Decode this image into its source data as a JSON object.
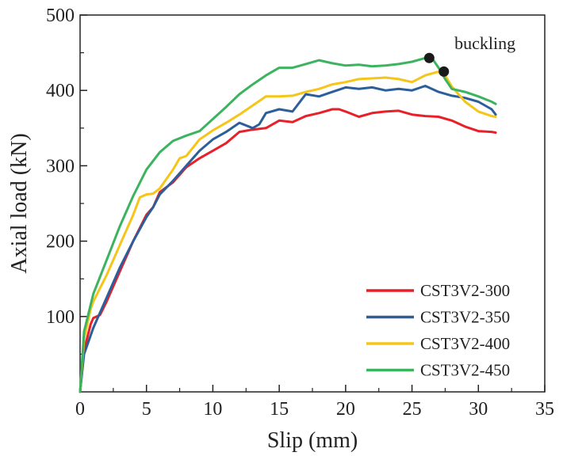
{
  "chart_data": {
    "type": "line",
    "xlabel": "Slip (mm)",
    "ylabel": "Axial load (kN)",
    "xlim": [
      0,
      35
    ],
    "ylim": [
      0,
      500
    ],
    "xticks": [
      0,
      5,
      10,
      15,
      20,
      25,
      30,
      35
    ],
    "yticks": [
      100,
      200,
      300,
      400,
      500
    ],
    "xtick_labels": [
      "0",
      "5",
      "10",
      "15",
      "20",
      "25",
      "30",
      "35"
    ],
    "ytick_labels": [
      "100",
      "200",
      "300",
      "400",
      "500"
    ],
    "legend_position": "bottom-right",
    "series": [
      {
        "name": "CST3V2-300",
        "color": "#e8202a",
        "points": [
          [
            0,
            0
          ],
          [
            0.3,
            55
          ],
          [
            0.8,
            90
          ],
          [
            1,
            98
          ],
          [
            1.5,
            102
          ],
          [
            2,
            120
          ],
          [
            3,
            160
          ],
          [
            4,
            200
          ],
          [
            5,
            235
          ],
          [
            5.5,
            245
          ],
          [
            6,
            265
          ],
          [
            7,
            278
          ],
          [
            8,
            298
          ],
          [
            9,
            310
          ],
          [
            10,
            320
          ],
          [
            11,
            330
          ],
          [
            12,
            345
          ],
          [
            13,
            348
          ],
          [
            14,
            350
          ],
          [
            15,
            360
          ],
          [
            16,
            358
          ],
          [
            17,
            366
          ],
          [
            18,
            370
          ],
          [
            19,
            375
          ],
          [
            19.5,
            375
          ],
          [
            20,
            372
          ],
          [
            21,
            365
          ],
          [
            22,
            370
          ],
          [
            23,
            372
          ],
          [
            24,
            373
          ],
          [
            25,
            368
          ],
          [
            26,
            366
          ],
          [
            27,
            365
          ],
          [
            28,
            360
          ],
          [
            29,
            352
          ],
          [
            30,
            346
          ],
          [
            31,
            345
          ],
          [
            31.3,
            344
          ]
        ]
      },
      {
        "name": "CST3V2-350",
        "color": "#2c5f9a",
        "points": [
          [
            0,
            0
          ],
          [
            0.3,
            50
          ],
          [
            1,
            85
          ],
          [
            1.5,
            105
          ],
          [
            2,
            125
          ],
          [
            3,
            165
          ],
          [
            4,
            200
          ],
          [
            5,
            232
          ],
          [
            5.5,
            245
          ],
          [
            6,
            262
          ],
          [
            7,
            280
          ],
          [
            8,
            300
          ],
          [
            9,
            320
          ],
          [
            10,
            335
          ],
          [
            11,
            345
          ],
          [
            12,
            357
          ],
          [
            13,
            350
          ],
          [
            13.5,
            355
          ],
          [
            14,
            370
          ],
          [
            15,
            375
          ],
          [
            16,
            372
          ],
          [
            17,
            395
          ],
          [
            18,
            392
          ],
          [
            19,
            398
          ],
          [
            20,
            404
          ],
          [
            21,
            402
          ],
          [
            22,
            404
          ],
          [
            23,
            400
          ],
          [
            24,
            402
          ],
          [
            25,
            400
          ],
          [
            26,
            406
          ],
          [
            27,
            398
          ],
          [
            28,
            393
          ],
          [
            29,
            390
          ],
          [
            30,
            385
          ],
          [
            31,
            375
          ],
          [
            31.3,
            368
          ]
        ]
      },
      {
        "name": "CST3V2-400",
        "color": "#f5c518",
        "points": [
          [
            0,
            0
          ],
          [
            0.3,
            70
          ],
          [
            0.8,
            110
          ],
          [
            1,
            120
          ],
          [
            2,
            155
          ],
          [
            3,
            195
          ],
          [
            4,
            235
          ],
          [
            4.5,
            258
          ],
          [
            5,
            262
          ],
          [
            5.5,
            263
          ],
          [
            6,
            270
          ],
          [
            7,
            295
          ],
          [
            7.5,
            310
          ],
          [
            8,
            313
          ],
          [
            9,
            335
          ],
          [
            10,
            347
          ],
          [
            11,
            357
          ],
          [
            12,
            368
          ],
          [
            13,
            380
          ],
          [
            14,
            392
          ],
          [
            15,
            392
          ],
          [
            16,
            393
          ],
          [
            17,
            398
          ],
          [
            18,
            402
          ],
          [
            19,
            408
          ],
          [
            20,
            411
          ],
          [
            21,
            415
          ],
          [
            22,
            416
          ],
          [
            23,
            417
          ],
          [
            24,
            415
          ],
          [
            25,
            411
          ],
          [
            26,
            420
          ],
          [
            27,
            425
          ],
          [
            27.5,
            420
          ],
          [
            28,
            405
          ],
          [
            29,
            385
          ],
          [
            30,
            372
          ],
          [
            31,
            366
          ],
          [
            31.3,
            365
          ]
        ]
      },
      {
        "name": "CST3V2-450",
        "color": "#3cb45f",
        "points": [
          [
            0,
            0
          ],
          [
            0.3,
            80
          ],
          [
            1,
            130
          ],
          [
            2,
            175
          ],
          [
            3,
            220
          ],
          [
            4,
            260
          ],
          [
            5,
            295
          ],
          [
            6,
            318
          ],
          [
            7,
            333
          ],
          [
            8,
            340
          ],
          [
            9,
            346
          ],
          [
            10,
            362
          ],
          [
            11,
            378
          ],
          [
            12,
            395
          ],
          [
            13,
            408
          ],
          [
            14,
            420
          ],
          [
            15,
            430
          ],
          [
            16,
            430
          ],
          [
            17,
            435
          ],
          [
            18,
            440
          ],
          [
            19,
            436
          ],
          [
            20,
            433
          ],
          [
            21,
            434
          ],
          [
            22,
            432
          ],
          [
            23,
            433
          ],
          [
            24,
            435
          ],
          [
            25,
            438
          ],
          [
            26,
            443
          ],
          [
            26.5,
            443
          ],
          [
            27,
            430
          ],
          [
            27.5,
            415
          ],
          [
            28,
            402
          ],
          [
            29,
            398
          ],
          [
            30,
            392
          ],
          [
            31,
            385
          ],
          [
            31.3,
            382
          ]
        ]
      }
    ],
    "markers": [
      {
        "series": "CST3V2-450",
        "x": 26.3,
        "y": 443
      },
      {
        "series": "CST3V2-400",
        "x": 27.4,
        "y": 425
      }
    ],
    "annotation": {
      "text": "buckling",
      "x": 28.2,
      "y": 455
    }
  }
}
